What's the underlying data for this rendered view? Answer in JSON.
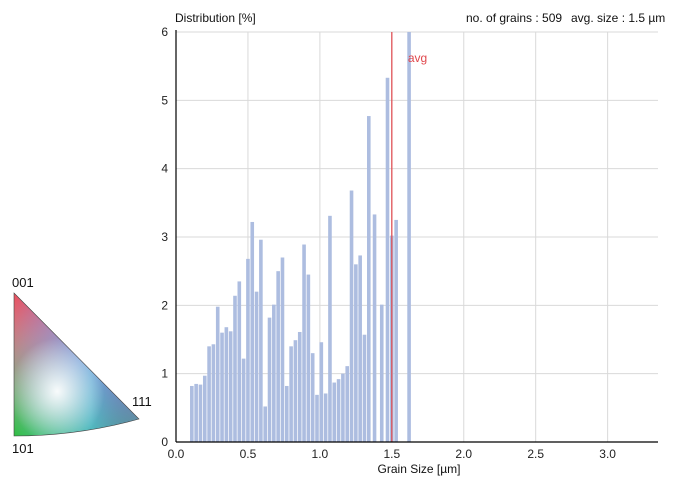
{
  "ylabel_text": "Distribution [%]",
  "grains_text": "no. of grains : 509",
  "avgsize_text": "avg. size : 1.5 µm",
  "avg_label": "avg",
  "ipf_legend": {
    "top": "001",
    "left": "101",
    "right": "111"
  },
  "colors": {
    "bar": "#adbde0",
    "avg_line": "#e0474c",
    "grid": "#d9d9d9",
    "axis": "#000000"
  },
  "chart_data": {
    "type": "bar",
    "title": "",
    "xlabel": "Grain Size [µm]",
    "ylabel": "Distribution [%]",
    "xlim": [
      0,
      3.35
    ],
    "ylim": [
      0,
      6
    ],
    "xticks": [
      0.0,
      0.5,
      1.0,
      1.5,
      2.0,
      2.5,
      3.0
    ],
    "xtick_labels": [
      "0.0",
      "0.5",
      "1.0",
      "1.5",
      "2.0",
      "2.5",
      "3.0"
    ],
    "yticks": [
      0,
      1,
      2,
      3,
      4,
      5,
      6
    ],
    "ytick_labels": [
      "0",
      "1",
      "2",
      "3",
      "4",
      "5",
      "6"
    ],
    "avg_line_x": 1.5,
    "grid": true,
    "x": [
      0.11,
      0.14,
      0.17,
      0.2,
      0.23,
      0.26,
      0.29,
      0.32,
      0.35,
      0.38,
      0.41,
      0.44,
      0.47,
      0.5,
      0.53,
      0.56,
      0.59,
      0.62,
      0.65,
      0.68,
      0.71,
      0.74,
      0.77,
      0.8,
      0.83,
      0.86,
      0.89,
      0.92,
      0.95,
      0.98,
      1.01,
      1.04,
      1.07,
      1.1,
      1.13,
      1.16,
      1.19,
      1.22,
      1.25,
      1.28,
      1.31,
      1.34,
      1.38,
      1.43,
      1.47,
      1.5,
      1.53,
      1.62,
      1.66,
      1.69,
      1.73,
      1.87,
      2.14,
      2.32,
      2.36,
      3.3
    ],
    "values": [
      0.82,
      0.85,
      0.84,
      0.97,
      1.4,
      1.43,
      1.98,
      1.6,
      1.68,
      1.62,
      2.14,
      2.35,
      1.22,
      2.68,
      3.22,
      2.2,
      2.96,
      0.52,
      1.82,
      2.01,
      2.5,
      2.7,
      0.82,
      1.4,
      1.49,
      1.61,
      2.89,
      2.45,
      1.3,
      0.69,
      1.46,
      0.71,
      3.31,
      0.87,
      0.92,
      1.0,
      1.11,
      3.68,
      2.6,
      2.73,
      1.57,
      4.77,
      3.33,
      2.01,
      5.33,
      3.02,
      3.25,
      6.0,
      0.0,
      0.0,
      0.0,
      0.0,
      0.0,
      0.0,
      0.0,
      0.0
    ]
  }
}
